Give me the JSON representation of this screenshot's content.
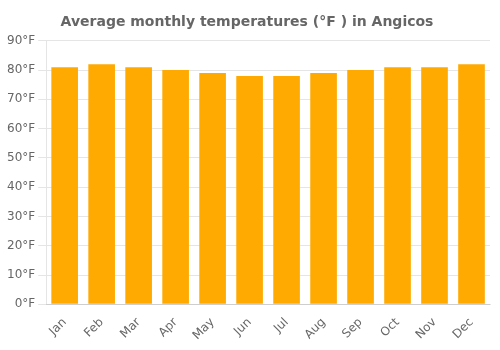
{
  "chart_data": {
    "type": "bar",
    "title": "Average monthly temperatures (°F ) in Angicos",
    "categories": [
      "Jan",
      "Feb",
      "Mar",
      "Apr",
      "May",
      "Jun",
      "Jul",
      "Aug",
      "Sep",
      "Oct",
      "Nov",
      "Dec"
    ],
    "values": [
      81,
      82,
      81,
      80,
      79,
      78,
      78,
      79,
      80,
      81,
      81,
      82
    ],
    "color": "#FFAA00",
    "ylim": [
      0,
      90
    ],
    "yticks": [
      {
        "value": 0,
        "label": "0°F"
      },
      {
        "value": 10,
        "label": "10°F"
      },
      {
        "value": 20,
        "label": "20°F"
      },
      {
        "value": 30,
        "label": "30°F"
      },
      {
        "value": 40,
        "label": "40°F"
      },
      {
        "value": 50,
        "label": "50°F"
      },
      {
        "value": 60,
        "label": "60°F"
      },
      {
        "value": 70,
        "label": "70°F"
      },
      {
        "value": 80,
        "label": "80°F"
      },
      {
        "value": 90,
        "label": "90°F"
      }
    ],
    "grid": true
  }
}
